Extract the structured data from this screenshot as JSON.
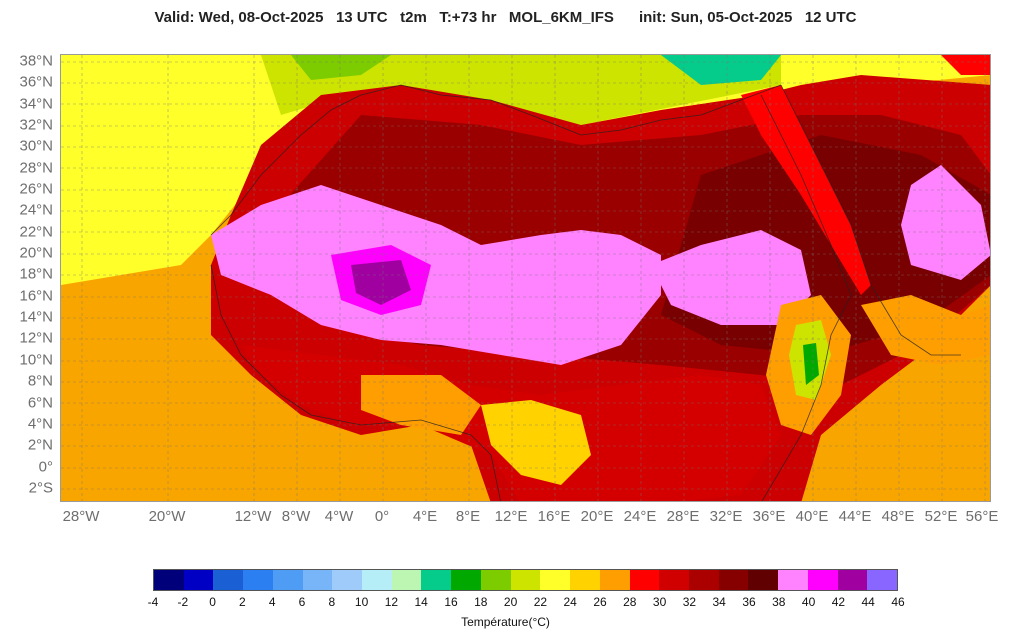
{
  "header": {
    "title": "Valid: Wed, 08-Oct-2025   13 UTC   t2m   T:+73 hr   MOL_6KM_IFS      init: Sun, 05-Oct-2025   12 UTC"
  },
  "map": {
    "lat_labels": [
      "38°N",
      "36°N",
      "34°N",
      "32°N",
      "30°N",
      "28°N",
      "26°N",
      "24°N",
      "22°N",
      "20°N",
      "18°N",
      "16°N",
      "14°N",
      "12°N",
      "10°N",
      "8°N",
      "6°N",
      "4°N",
      "2°N",
      "0°",
      "2°S"
    ],
    "lon_labels": [
      "28°W",
      "20°W",
      "12°W",
      "8°W",
      "4°W",
      "0°",
      "4°E",
      "8°E",
      "12°E",
      "16°E",
      "20°E",
      "24°E",
      "28°E",
      "32°E",
      "36°E",
      "40°E",
      "44°E",
      "48°E",
      "52°E",
      "56°E"
    ],
    "lon_values": [
      -28,
      -20,
      -12,
      -8,
      -4,
      0,
      4,
      8,
      12,
      16,
      20,
      24,
      28,
      32,
      36,
      40,
      44,
      48,
      52,
      56
    ],
    "lat_values": [
      38,
      36,
      34,
      32,
      30,
      28,
      26,
      24,
      22,
      20,
      18,
      16,
      14,
      12,
      10,
      8,
      6,
      4,
      2,
      0,
      -2
    ]
  },
  "colorbar": {
    "title": "Température(°C)",
    "ticks": [
      "-4",
      "-2",
      "0",
      "2",
      "4",
      "6",
      "8",
      "10",
      "12",
      "14",
      "16",
      "18",
      "20",
      "22",
      "24",
      "26",
      "28",
      "30",
      "32",
      "34",
      "36",
      "38",
      "40",
      "42",
      "44",
      "46"
    ],
    "colors": [
      "#00007a",
      "#0000c4",
      "#1a5fd4",
      "#2b7ff0",
      "#4f9cf5",
      "#77b4f8",
      "#9ecbfa",
      "#b6eef7",
      "#bdf5b2",
      "#05cc8a",
      "#00a800",
      "#7ccc00",
      "#cce400",
      "#ffff2a",
      "#ffd200",
      "#ff9e00",
      "#ff0000",
      "#d00000",
      "#aa0000",
      "#860000",
      "#600000",
      "#ff82ff",
      "#ff00ff",
      "#a000a0",
      "#8866ff"
    ]
  }
}
